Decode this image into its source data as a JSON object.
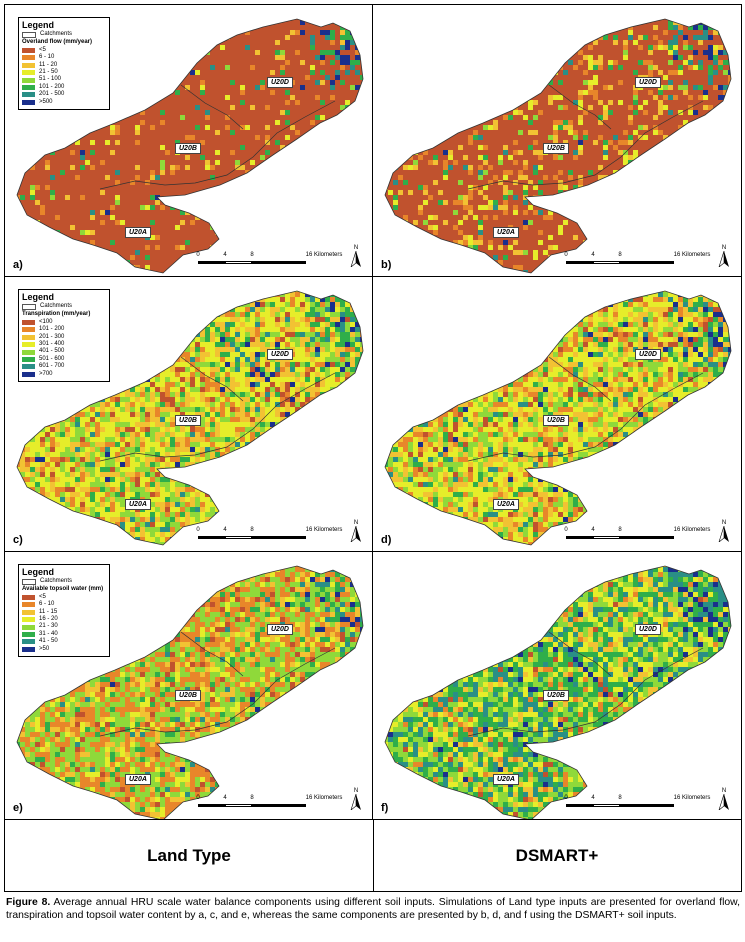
{
  "panels": [
    {
      "id": "a",
      "letter": "a)",
      "legend_title": "Legend",
      "legend_sub": "Overland flow (mm/year)",
      "classes": [
        {
          "label": "<5",
          "color": "#c0522e"
        },
        {
          "label": "6 - 10",
          "color": "#e8862a"
        },
        {
          "label": "11 - 20",
          "color": "#f2c233"
        },
        {
          "label": "21 - 50",
          "color": "#e6ed2a"
        },
        {
          "label": "51 - 100",
          "color": "#8fd93a"
        },
        {
          "label": "101 - 200",
          "color": "#2fae4a"
        },
        {
          "label": "201 - 500",
          "color": "#2a8f86"
        },
        {
          "label": ">500",
          "color": "#1a2f8c"
        }
      ],
      "mix": [
        0.86,
        0.05,
        0.03,
        0.02,
        0.01,
        0.02,
        0.008,
        0.002
      ]
    },
    {
      "id": "b",
      "letter": "b)",
      "legend_title": "",
      "legend_sub": "",
      "classes": [],
      "mix": [
        0.7,
        0.09,
        0.08,
        0.06,
        0.02,
        0.03,
        0.015,
        0.005
      ]
    },
    {
      "id": "c",
      "letter": "c)",
      "legend_title": "Legend",
      "legend_sub": "Transpiration (mm/year)",
      "classes": [
        {
          "label": "<100",
          "color": "#c0522e"
        },
        {
          "label": "101 - 200",
          "color": "#e8862a"
        },
        {
          "label": "201 - 300",
          "color": "#f2c233"
        },
        {
          "label": "301 - 400",
          "color": "#e6ed2a"
        },
        {
          "label": "401 - 500",
          "color": "#8fd93a"
        },
        {
          "label": "501 - 600",
          "color": "#2fae4a"
        },
        {
          "label": "601 - 700",
          "color": "#2a8f86"
        },
        {
          "label": ">700",
          "color": "#1a2f8c"
        }
      ],
      "mix": [
        0.06,
        0.15,
        0.2,
        0.3,
        0.17,
        0.07,
        0.03,
        0.02
      ]
    },
    {
      "id": "d",
      "letter": "d)",
      "legend_title": "",
      "legend_sub": "",
      "classes": [],
      "mix": [
        0.05,
        0.13,
        0.2,
        0.32,
        0.18,
        0.07,
        0.03,
        0.02
      ]
    },
    {
      "id": "e",
      "letter": "e)",
      "legend_title": "Legend",
      "legend_sub": "Available topsoil water (mm)",
      "classes": [
        {
          "label": "<5",
          "color": "#c0522e"
        },
        {
          "label": "6 - 10",
          "color": "#e8862a"
        },
        {
          "label": "11 - 15",
          "color": "#f2c233"
        },
        {
          "label": "16 - 20",
          "color": "#e6ed2a"
        },
        {
          "label": "21 - 30",
          "color": "#8fd93a"
        },
        {
          "label": "31 - 40",
          "color": "#2fae4a"
        },
        {
          "label": "41 - 50",
          "color": "#2a8f86"
        },
        {
          "label": ">50",
          "color": "#1a2f8c"
        }
      ],
      "mix": [
        0.05,
        0.32,
        0.12,
        0.1,
        0.33,
        0.06,
        0.015,
        0.005
      ]
    },
    {
      "id": "f",
      "letter": "f)",
      "legend_title": "",
      "legend_sub": "",
      "classes": [],
      "mix": [
        0.02,
        0.05,
        0.1,
        0.16,
        0.22,
        0.25,
        0.17,
        0.03
      ]
    }
  ],
  "legend_catchments": "Catchments",
  "catchments": [
    "U20D",
    "U20B",
    "U20A"
  ],
  "scale_ticks": [
    "0",
    "4",
    "8",
    "16 Kilometers"
  ],
  "north": "N",
  "footer_left": "Land Type",
  "footer_right": "DSMART+",
  "caption": {
    "lead": "Figure 8.",
    "text": " Average annual HRU scale water balance components using different soil inputs. Simulations of Land type inputs are presented for overland flow, transpiration and topsoil water content by a, c, and e, whereas the same components are presented by b, d, and f using the DSMART+ soil inputs."
  }
}
